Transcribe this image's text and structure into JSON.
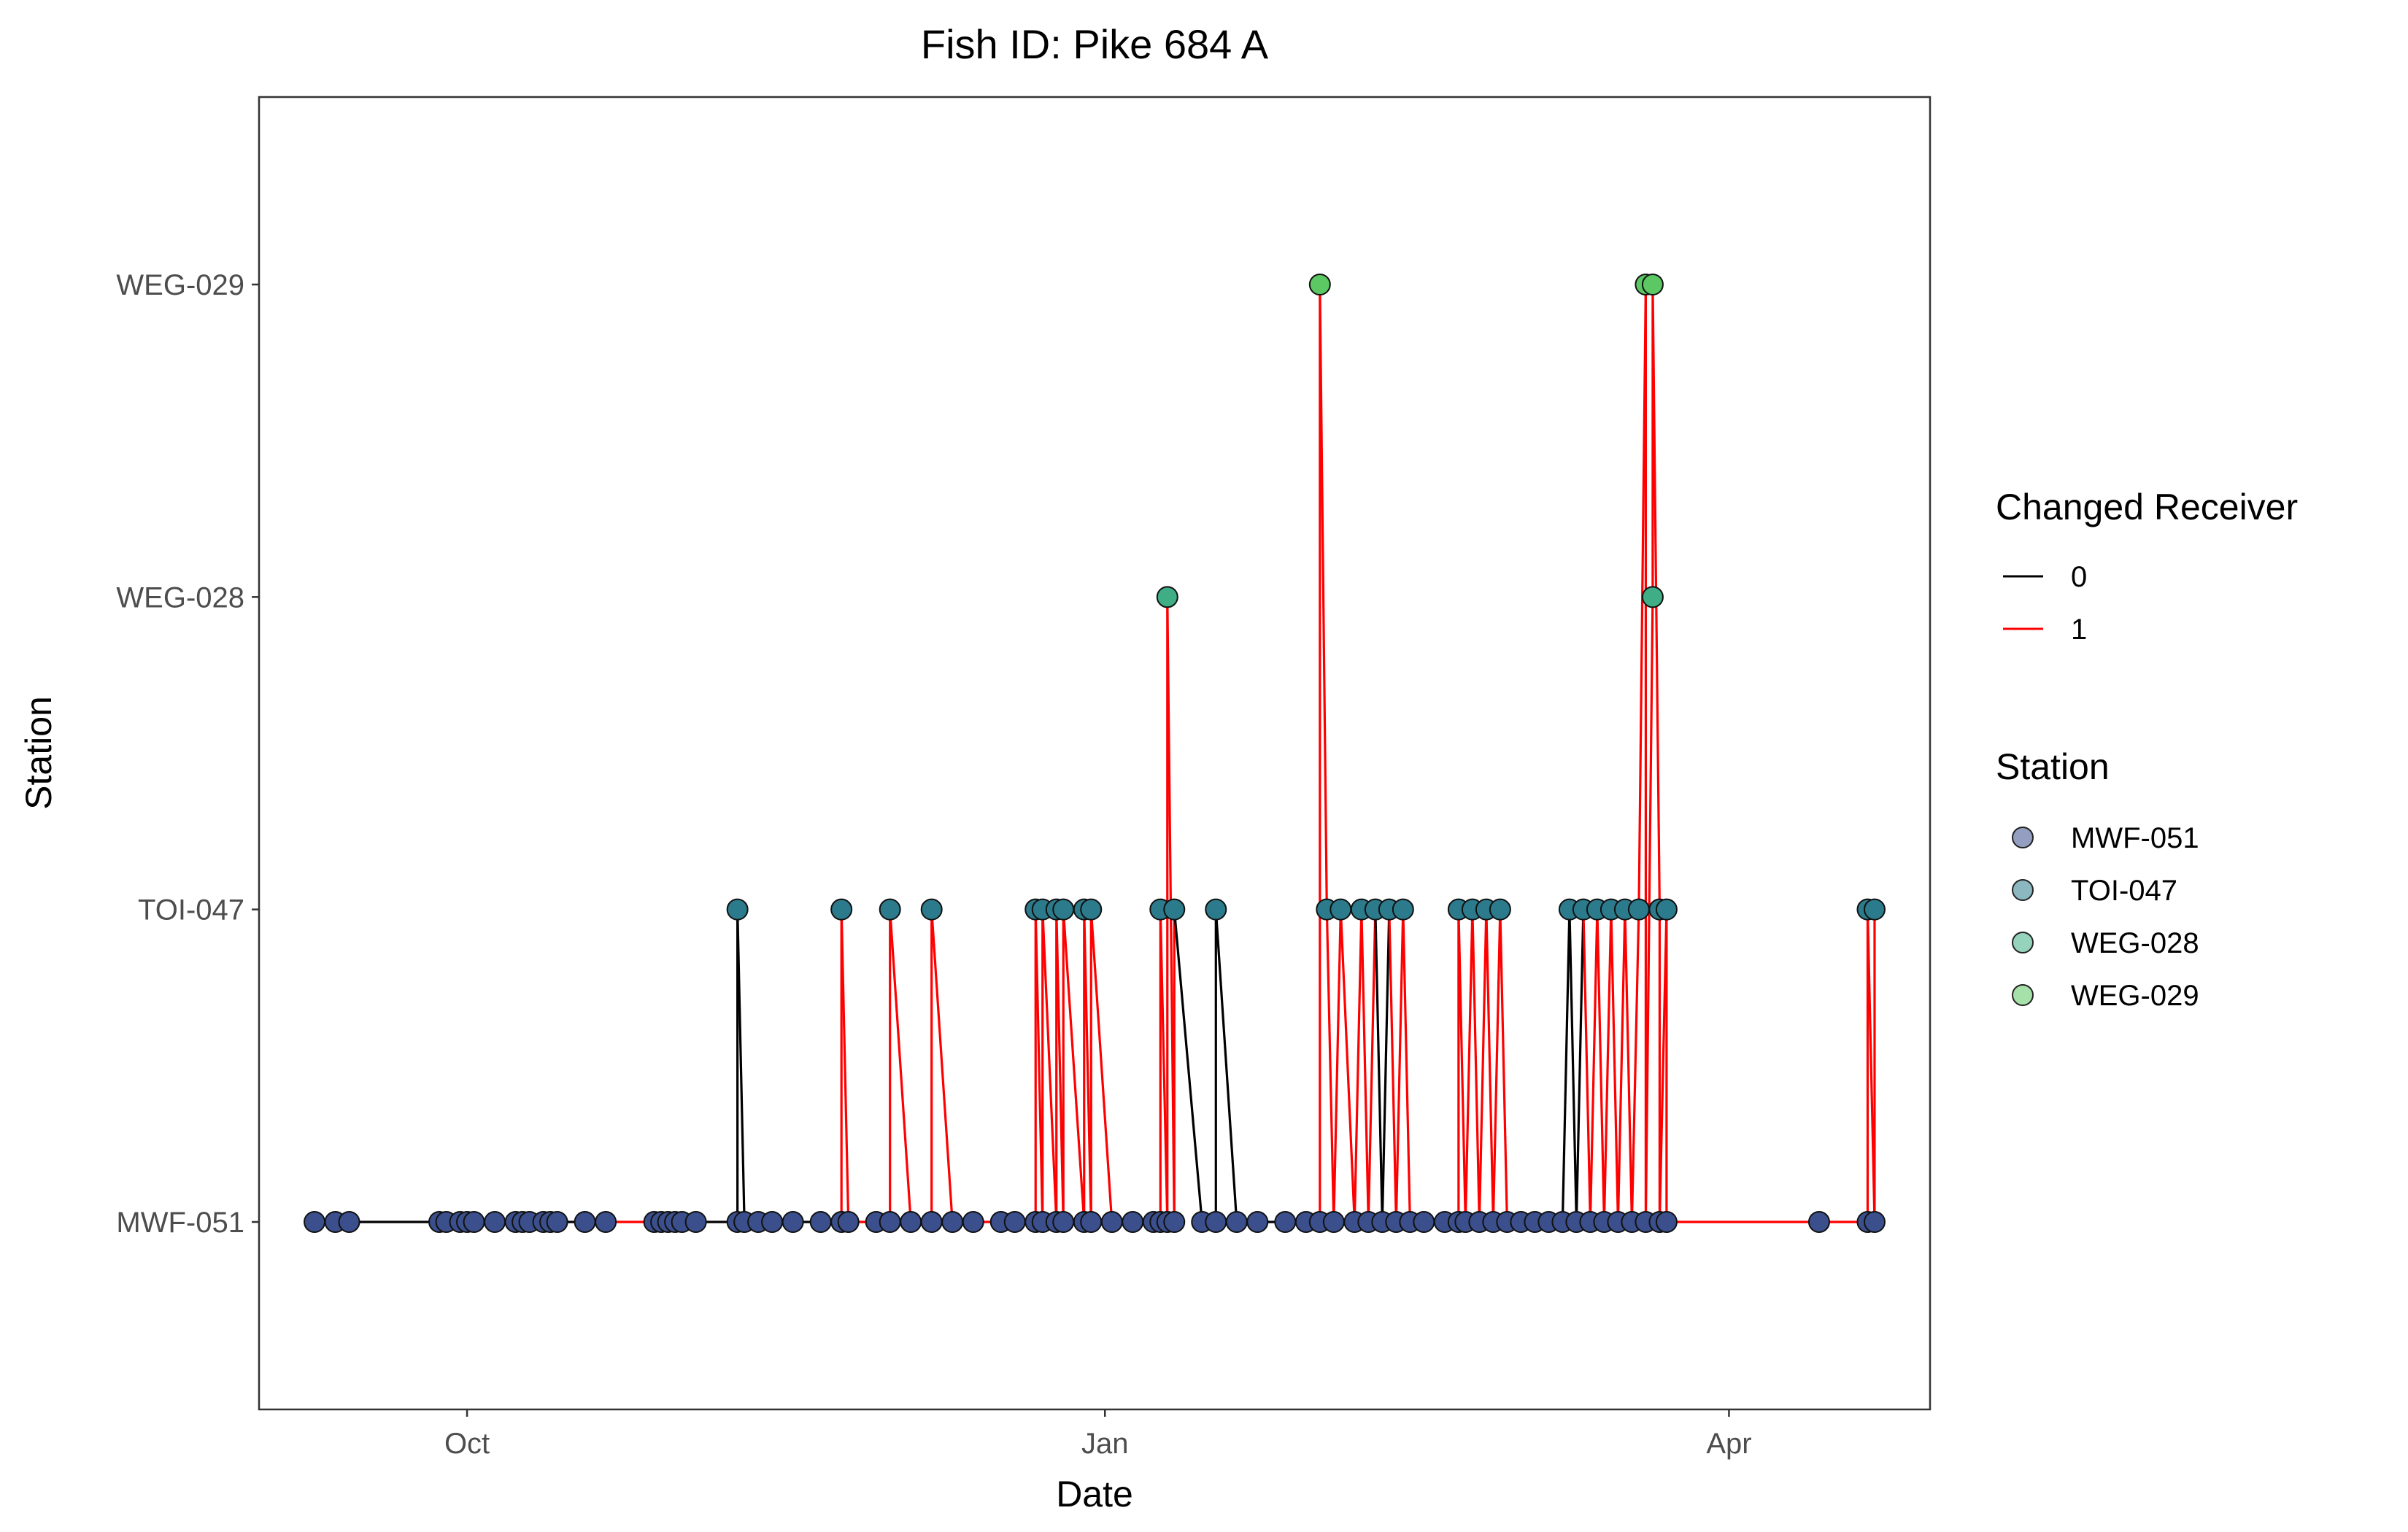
{
  "chart_data": {
    "type": "scatter",
    "title": "Fish ID: Pike 684 A",
    "xlabel": "Date",
    "ylabel": "Station",
    "x_ticks": [
      "Oct",
      "Jan",
      "Apr"
    ],
    "x_tick_dates": [
      "2021-10-01",
      "2022-01-01",
      "2022-04-01"
    ],
    "xlim": [
      "2021-09-01",
      "2022-04-30"
    ],
    "y_categories": [
      "MWF-051",
      "TOI-047",
      "WEG-028",
      "WEG-029"
    ],
    "grid": false,
    "legend_position": "right",
    "legends": {
      "line": {
        "title": "Changed Receiver",
        "items": [
          {
            "label": "0",
            "color": "#000000"
          },
          {
            "label": "1",
            "color": "#ff0000"
          }
        ]
      },
      "points": {
        "title": "Station",
        "items": [
          {
            "label": "MWF-051",
            "color": "#3b4f8c"
          },
          {
            "label": "TOI-047",
            "color": "#2c7b8c"
          },
          {
            "label": "WEG-028",
            "color": "#3fae86"
          },
          {
            "label": "WEG-029",
            "color": "#5cc863"
          }
        ]
      }
    },
    "series": [
      {
        "x": "2021-09-09",
        "y": "MWF-051",
        "changed": 0
      },
      {
        "x": "2021-09-12",
        "y": "MWF-051",
        "changed": 0
      },
      {
        "x": "2021-09-14",
        "y": "MWF-051",
        "changed": 0
      },
      {
        "x": "2021-09-27",
        "y": "MWF-051",
        "changed": 0
      },
      {
        "x": "2021-09-28",
        "y": "MWF-051",
        "changed": 0
      },
      {
        "x": "2021-09-30",
        "y": "MWF-051",
        "changed": 0
      },
      {
        "x": "2021-10-01",
        "y": "MWF-051",
        "changed": 0
      },
      {
        "x": "2021-10-02",
        "y": "MWF-051",
        "changed": 0
      },
      {
        "x": "2021-10-05",
        "y": "MWF-051",
        "changed": 0
      },
      {
        "x": "2021-10-08",
        "y": "MWF-051",
        "changed": 0
      },
      {
        "x": "2021-10-09",
        "y": "MWF-051",
        "changed": 0
      },
      {
        "x": "2021-10-10",
        "y": "MWF-051",
        "changed": 0
      },
      {
        "x": "2021-10-12",
        "y": "MWF-051",
        "changed": 0
      },
      {
        "x": "2021-10-13",
        "y": "MWF-051",
        "changed": 0
      },
      {
        "x": "2021-10-14",
        "y": "MWF-051",
        "changed": 0
      },
      {
        "x": "2021-10-18",
        "y": "MWF-051",
        "changed": 0
      },
      {
        "x": "2021-10-21",
        "y": "MWF-051",
        "changed": 0
      },
      {
        "x": "2021-10-28",
        "y": "MWF-051",
        "changed": 1
      },
      {
        "x": "2021-10-29",
        "y": "MWF-051",
        "changed": 1
      },
      {
        "x": "2021-10-30",
        "y": "MWF-051",
        "changed": 1
      },
      {
        "x": "2021-10-31",
        "y": "MWF-051",
        "changed": 1
      },
      {
        "x": "2021-11-01",
        "y": "MWF-051",
        "changed": 1
      },
      {
        "x": "2021-11-03",
        "y": "MWF-051",
        "changed": 1
      },
      {
        "x": "2021-11-09",
        "y": "MWF-051",
        "changed": 0
      },
      {
        "x": "2021-11-09",
        "y": "TOI-047",
        "changed": 0
      },
      {
        "x": "2021-11-10",
        "y": "MWF-051",
        "changed": 0
      },
      {
        "x": "2021-11-12",
        "y": "MWF-051",
        "changed": 0
      },
      {
        "x": "2021-11-14",
        "y": "MWF-051",
        "changed": 0
      },
      {
        "x": "2021-11-17",
        "y": "MWF-051",
        "changed": 0
      },
      {
        "x": "2021-11-21",
        "y": "MWF-051",
        "changed": 0
      },
      {
        "x": "2021-11-24",
        "y": "MWF-051",
        "changed": 1
      },
      {
        "x": "2021-11-24",
        "y": "TOI-047",
        "changed": 1
      },
      {
        "x": "2021-11-25",
        "y": "MWF-051",
        "changed": 1
      },
      {
        "x": "2021-11-29",
        "y": "MWF-051",
        "changed": 1
      },
      {
        "x": "2021-12-01",
        "y": "MWF-051",
        "changed": 1
      },
      {
        "x": "2021-12-01",
        "y": "TOI-047",
        "changed": 1
      },
      {
        "x": "2021-12-04",
        "y": "MWF-051",
        "changed": 1
      },
      {
        "x": "2021-12-07",
        "y": "MWF-051",
        "changed": 1
      },
      {
        "x": "2021-12-07",
        "y": "TOI-047",
        "changed": 1
      },
      {
        "x": "2021-12-10",
        "y": "MWF-051",
        "changed": 1
      },
      {
        "x": "2021-12-13",
        "y": "MWF-051",
        "changed": 1
      },
      {
        "x": "2021-12-17",
        "y": "MWF-051",
        "changed": 1
      },
      {
        "x": "2021-12-19",
        "y": "MWF-051",
        "changed": 1
      },
      {
        "x": "2021-12-22",
        "y": "MWF-051",
        "changed": 1
      },
      {
        "x": "2021-12-22",
        "y": "TOI-047",
        "changed": 1
      },
      {
        "x": "2021-12-23",
        "y": "MWF-051",
        "changed": 1
      },
      {
        "x": "2021-12-23",
        "y": "TOI-047",
        "changed": 1
      },
      {
        "x": "2021-12-25",
        "y": "MWF-051",
        "changed": 1
      },
      {
        "x": "2021-12-25",
        "y": "TOI-047",
        "changed": 1
      },
      {
        "x": "2021-12-26",
        "y": "MWF-051",
        "changed": 1
      },
      {
        "x": "2021-12-26",
        "y": "TOI-047",
        "changed": 1
      },
      {
        "x": "2021-12-29",
        "y": "MWF-051",
        "changed": 1
      },
      {
        "x": "2021-12-29",
        "y": "TOI-047",
        "changed": 1
      },
      {
        "x": "2021-12-30",
        "y": "MWF-051",
        "changed": 1
      },
      {
        "x": "2021-12-30",
        "y": "TOI-047",
        "changed": 1
      },
      {
        "x": "2022-01-02",
        "y": "MWF-051",
        "changed": 1
      },
      {
        "x": "2022-01-05",
        "y": "MWF-051",
        "changed": 1
      },
      {
        "x": "2022-01-08",
        "y": "MWF-051",
        "changed": 1
      },
      {
        "x": "2022-01-09",
        "y": "MWF-051",
        "changed": 1
      },
      {
        "x": "2022-01-09",
        "y": "TOI-047",
        "changed": 1
      },
      {
        "x": "2022-01-10",
        "y": "MWF-051",
        "changed": 1
      },
      {
        "x": "2022-01-10",
        "y": "WEG-028",
        "changed": 1
      },
      {
        "x": "2022-01-11",
        "y": "MWF-051",
        "changed": 1
      },
      {
        "x": "2022-01-11",
        "y": "TOI-047",
        "changed": 1
      },
      {
        "x": "2022-01-15",
        "y": "MWF-051",
        "changed": 0
      },
      {
        "x": "2022-01-17",
        "y": "MWF-051",
        "changed": 0
      },
      {
        "x": "2022-01-17",
        "y": "TOI-047",
        "changed": 0
      },
      {
        "x": "2022-01-20",
        "y": "MWF-051",
        "changed": 0
      },
      {
        "x": "2022-01-23",
        "y": "MWF-051",
        "changed": 0
      },
      {
        "x": "2022-01-27",
        "y": "MWF-051",
        "changed": 0
      },
      {
        "x": "2022-01-30",
        "y": "MWF-051",
        "changed": 1
      },
      {
        "x": "2022-02-01",
        "y": "MWF-051",
        "changed": 1
      },
      {
        "x": "2022-02-01",
        "y": "WEG-029",
        "changed": 1
      },
      {
        "x": "2022-02-02",
        "y": "TOI-047",
        "changed": 1
      },
      {
        "x": "2022-02-03",
        "y": "MWF-051",
        "changed": 1
      },
      {
        "x": "2022-02-04",
        "y": "TOI-047",
        "changed": 1
      },
      {
        "x": "2022-02-06",
        "y": "MWF-051",
        "changed": 1
      },
      {
        "x": "2022-02-07",
        "y": "TOI-047",
        "changed": 1
      },
      {
        "x": "2022-02-08",
        "y": "MWF-051",
        "changed": 1
      },
      {
        "x": "2022-02-09",
        "y": "TOI-047",
        "changed": 1
      },
      {
        "x": "2022-02-10",
        "y": "MWF-051",
        "changed": 0
      },
      {
        "x": "2022-02-11",
        "y": "TOI-047",
        "changed": 0
      },
      {
        "x": "2022-02-12",
        "y": "MWF-051",
        "changed": 1
      },
      {
        "x": "2022-02-13",
        "y": "TOI-047",
        "changed": 1
      },
      {
        "x": "2022-02-14",
        "y": "MWF-051",
        "changed": 1
      },
      {
        "x": "2022-02-16",
        "y": "MWF-051",
        "changed": 1
      },
      {
        "x": "2022-02-19",
        "y": "MWF-051",
        "changed": 1
      },
      {
        "x": "2022-02-21",
        "y": "MWF-051",
        "changed": 1
      },
      {
        "x": "2022-02-21",
        "y": "TOI-047",
        "changed": 1
      },
      {
        "x": "2022-02-22",
        "y": "MWF-051",
        "changed": 1
      },
      {
        "x": "2022-02-23",
        "y": "TOI-047",
        "changed": 1
      },
      {
        "x": "2022-02-24",
        "y": "MWF-051",
        "changed": 1
      },
      {
        "x": "2022-02-25",
        "y": "TOI-047",
        "changed": 1
      },
      {
        "x": "2022-02-26",
        "y": "MWF-051",
        "changed": 1
      },
      {
        "x": "2022-02-27",
        "y": "TOI-047",
        "changed": 1
      },
      {
        "x": "2022-02-28",
        "y": "MWF-051",
        "changed": 1
      },
      {
        "x": "2022-03-02",
        "y": "MWF-051",
        "changed": 1
      },
      {
        "x": "2022-03-04",
        "y": "MWF-051",
        "changed": 0
      },
      {
        "x": "2022-03-06",
        "y": "MWF-051",
        "changed": 0
      },
      {
        "x": "2022-03-08",
        "y": "MWF-051",
        "changed": 0
      },
      {
        "x": "2022-03-09",
        "y": "TOI-047",
        "changed": 0
      },
      {
        "x": "2022-03-10",
        "y": "MWF-051",
        "changed": 0
      },
      {
        "x": "2022-03-11",
        "y": "TOI-047",
        "changed": 0
      },
      {
        "x": "2022-03-12",
        "y": "MWF-051",
        "changed": 1
      },
      {
        "x": "2022-03-13",
        "y": "TOI-047",
        "changed": 1
      },
      {
        "x": "2022-03-14",
        "y": "MWF-051",
        "changed": 1
      },
      {
        "x": "2022-03-15",
        "y": "TOI-047",
        "changed": 1
      },
      {
        "x": "2022-03-16",
        "y": "MWF-051",
        "changed": 1
      },
      {
        "x": "2022-03-17",
        "y": "TOI-047",
        "changed": 1
      },
      {
        "x": "2022-03-18",
        "y": "MWF-051",
        "changed": 1
      },
      {
        "x": "2022-03-19",
        "y": "TOI-047",
        "changed": 1
      },
      {
        "x": "2022-03-20",
        "y": "WEG-029",
        "changed": 1
      },
      {
        "x": "2022-03-20",
        "y": "MWF-051",
        "changed": 1
      },
      {
        "x": "2022-03-21",
        "y": "WEG-028",
        "changed": 1
      },
      {
        "x": "2022-03-21",
        "y": "WEG-029",
        "changed": 1
      },
      {
        "x": "2022-03-22",
        "y": "TOI-047",
        "changed": 1
      },
      {
        "x": "2022-03-22",
        "y": "MWF-051",
        "changed": 1
      },
      {
        "x": "2022-03-23",
        "y": "TOI-047",
        "changed": 1
      },
      {
        "x": "2022-03-23",
        "y": "MWF-051",
        "changed": 1
      },
      {
        "x": "2022-04-14",
        "y": "MWF-051",
        "changed": 1
      },
      {
        "x": "2022-04-21",
        "y": "MWF-051",
        "changed": 1
      },
      {
        "x": "2022-04-21",
        "y": "TOI-047",
        "changed": 1
      },
      {
        "x": "2022-04-22",
        "y": "MWF-051",
        "changed": 1
      },
      {
        "x": "2022-04-22",
        "y": "TOI-047",
        "changed": 1
      }
    ]
  }
}
